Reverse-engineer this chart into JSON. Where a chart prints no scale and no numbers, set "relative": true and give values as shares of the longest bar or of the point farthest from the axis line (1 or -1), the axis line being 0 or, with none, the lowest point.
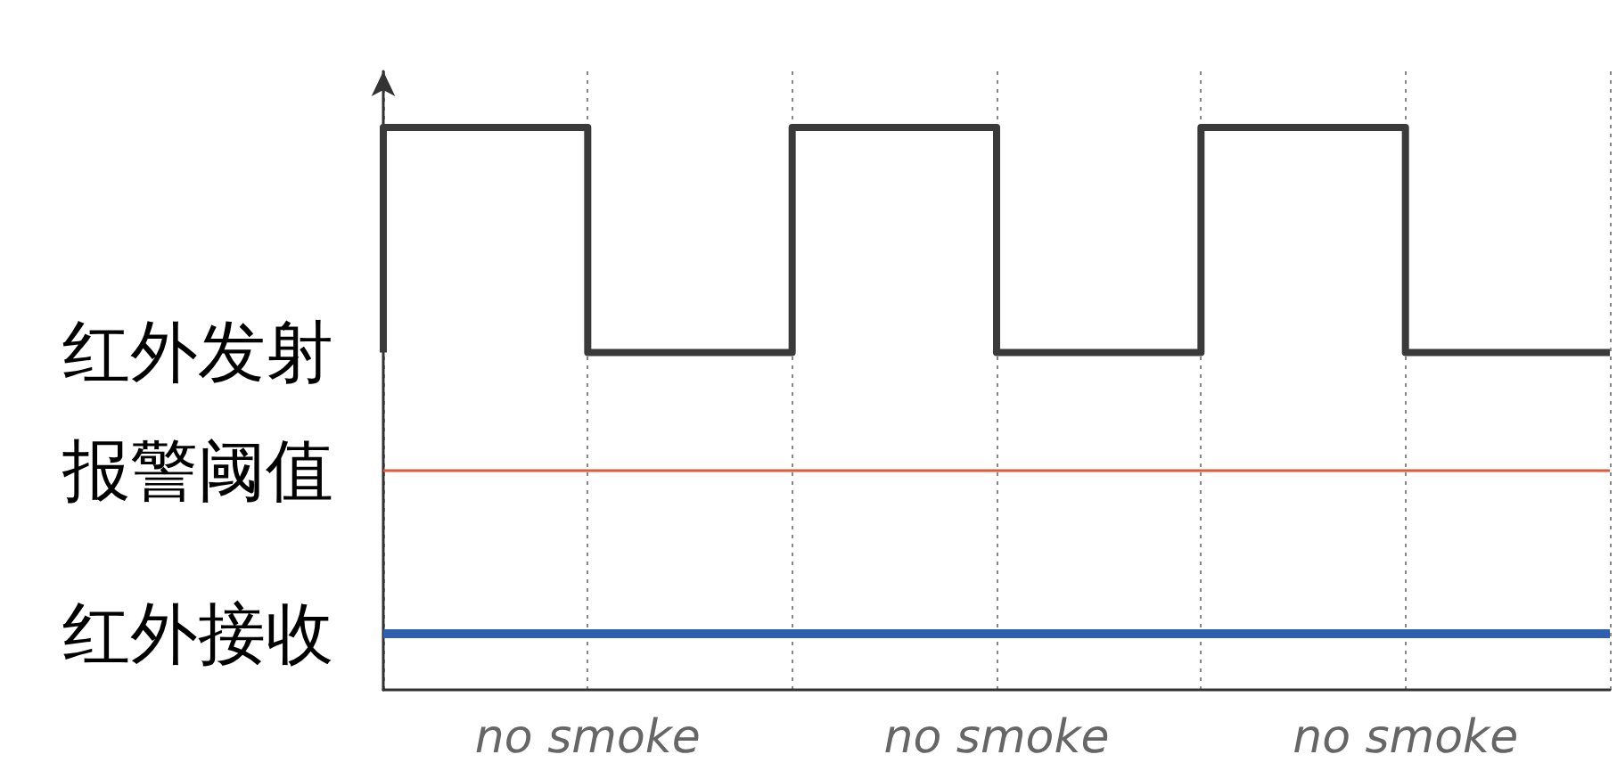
{
  "chart_data": {
    "type": "step",
    "relative": true,
    "grid": "x",
    "categories": [
      null,
      null,
      null,
      null,
      null,
      null,
      null
    ],
    "series": [
      {
        "name": "红外发射",
        "color": "#3a3a3a",
        "values": [
          0.6,
          1,
          0.6,
          1,
          0.6,
          1,
          0.6
        ]
      },
      {
        "name": "报警阈值",
        "type": "line",
        "color": "#e05a3a",
        "values": [
          0.39,
          0.39,
          0.39,
          0.39,
          0.39,
          0.39,
          0.39
        ]
      },
      {
        "name": "红外接收",
        "type": "line",
        "color": "#2f5faf",
        "values": [
          0.1,
          0.1,
          0.1,
          0.1,
          0.1,
          0.1,
          0.1
        ]
      }
    ],
    "annotations": [
      "no smoke",
      "no smoke",
      "no smoke"
    ]
  }
}
